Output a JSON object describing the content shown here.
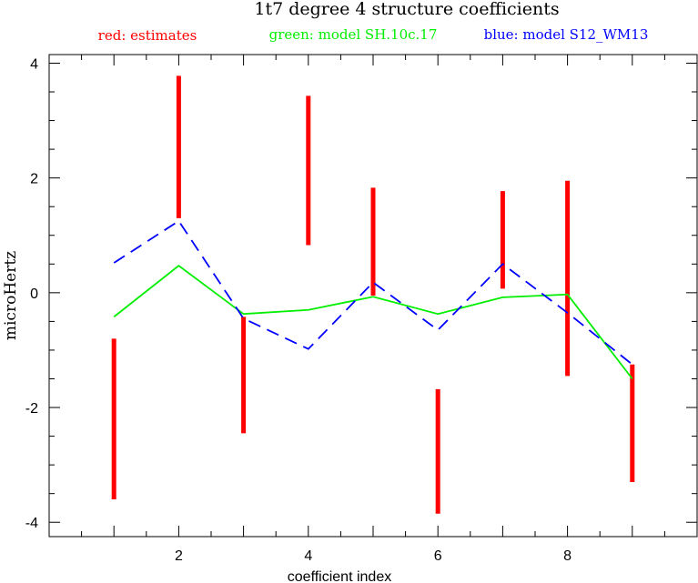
{
  "chart_data": {
    "type": "line",
    "title": "1t7 degree 4 structure coefficients",
    "legend": [
      {
        "text": "red: estimates",
        "color": "#ff0000"
      },
      {
        "text": "green: model SH.10c.17",
        "color": "#00ee00"
      },
      {
        "text": "blue: model S12_WM13",
        "color": "#0000ff"
      }
    ],
    "xlabel": "coefficient index",
    "ylabel": "microHertz",
    "xlim": [
      0,
      10
    ],
    "ylim": [
      -4.25,
      4.15
    ],
    "x_ticks": [
      2,
      4,
      6,
      8
    ],
    "y_ticks": [
      -4,
      -2,
      0,
      2,
      4
    ],
    "x_tick_labels": [
      "2",
      "4",
      "6",
      "8"
    ],
    "y_tick_labels": [
      "-4",
      "-2",
      "0",
      "2",
      "4"
    ],
    "estimates_errorbars": {
      "color": "#ff0000",
      "x": [
        1,
        2,
        3,
        4,
        5,
        6,
        7,
        8,
        9
      ],
      "low": [
        -3.6,
        1.3,
        -2.45,
        0.83,
        -0.05,
        -3.85,
        0.07,
        -1.45,
        -3.3
      ],
      "high": [
        -0.8,
        3.78,
        -0.42,
        3.43,
        1.83,
        -1.68,
        1.77,
        1.95,
        -1.25
      ]
    },
    "series": [
      {
        "color": "#00ee00",
        "style": "solid",
        "x": [
          1,
          2,
          3,
          4,
          5,
          6,
          7,
          8,
          9
        ],
        "values": [
          -0.42,
          0.47,
          -0.37,
          -0.3,
          -0.07,
          -0.37,
          -0.08,
          -0.03,
          -1.5
        ]
      },
      {
        "color": "#0000ff",
        "style": "dashed",
        "x": [
          1,
          2,
          3,
          4,
          5,
          6,
          7,
          8,
          9
        ],
        "values": [
          0.52,
          1.25,
          -0.45,
          -0.98,
          0.18,
          -0.65,
          0.5,
          -0.35,
          -1.25
        ]
      }
    ]
  }
}
